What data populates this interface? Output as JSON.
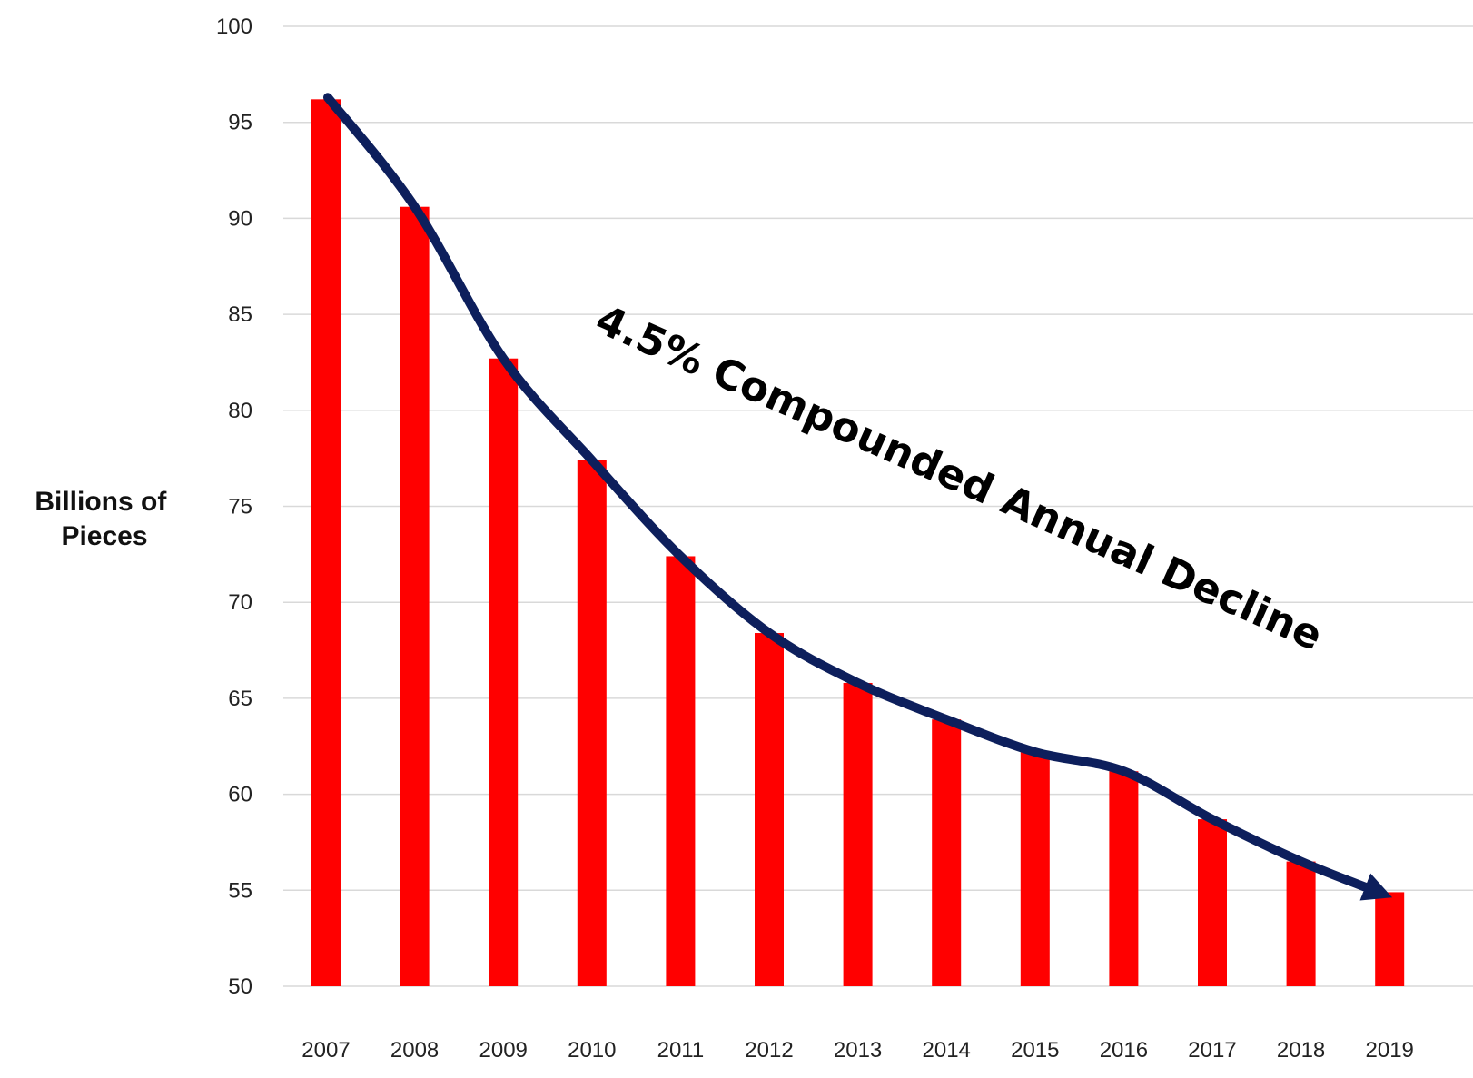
{
  "chart_data": {
    "type": "bar",
    "title": "",
    "xlabel": "",
    "ylabel_lines": [
      "Billions of",
      "Pieces"
    ],
    "categories": [
      "2007",
      "2008",
      "2009",
      "2010",
      "2011",
      "2012",
      "2013",
      "2014",
      "2015",
      "2016",
      "2017",
      "2018",
      "2019"
    ],
    "values": [
      96.2,
      90.6,
      82.7,
      77.4,
      72.4,
      68.4,
      65.8,
      63.9,
      62.2,
      61.2,
      58.7,
      56.5,
      54.9
    ],
    "ylim": [
      50,
      100
    ],
    "yticks": [
      "50",
      "55",
      "60",
      "65",
      "70",
      "75",
      "80",
      "85",
      "90",
      "95",
      "100"
    ],
    "grid": true,
    "legend": "none",
    "annotation": "4.5% Compounded Annual Decline",
    "colors": {
      "bar": "#ff0000",
      "trend_arrow": "#0d1f5c",
      "grid": "#d9d9d9"
    }
  }
}
